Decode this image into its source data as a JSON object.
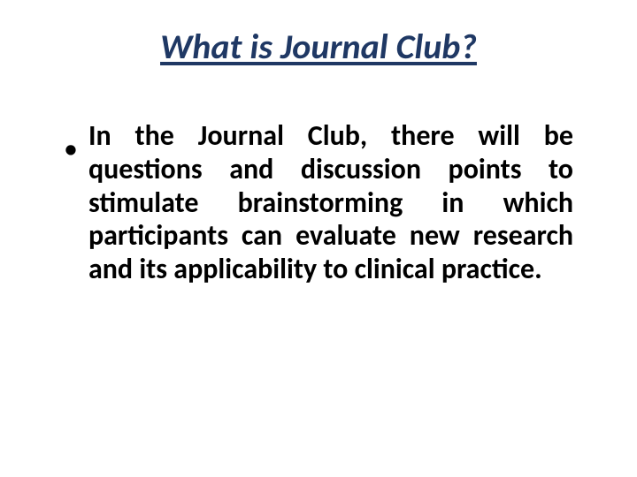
{
  "slide": {
    "title": "What is Journal Club?",
    "title_fontsize": 40,
    "title_color": "#1f3864",
    "title_underline_color": "#1f3864",
    "bullet_text": "In the Journal Club, there will be questions and discussion points to stimulate brainstorming in which participants can evaluate new research and its applicability to clinical practice.",
    "body_fontsize": 32,
    "body_color": "#000000",
    "bullet_marker": "•",
    "background_color": "#ffffff"
  }
}
